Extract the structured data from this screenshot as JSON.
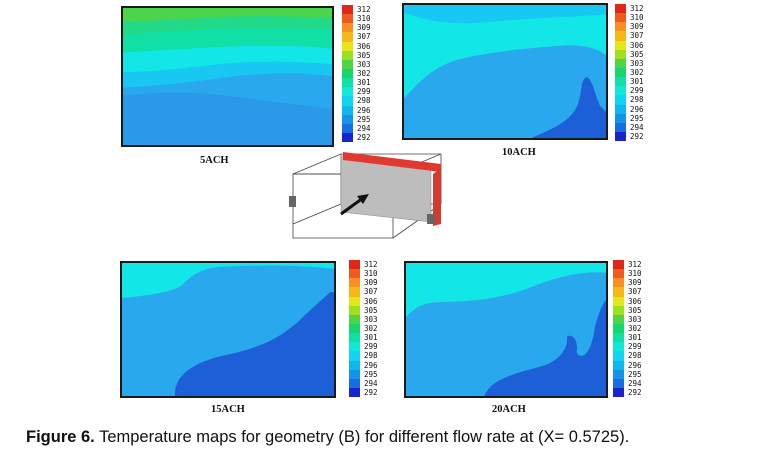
{
  "colors": {
    "scale": [
      "#e0281a",
      "#f05a1e",
      "#f7901f",
      "#f5b818",
      "#e4e61a",
      "#9ce01f",
      "#4ed44a",
      "#18d66f",
      "#10e0a5",
      "#12e8d8",
      "#10d4f0",
      "#10b7ee",
      "#1495e8",
      "#176ee0",
      "#1848d8",
      "#1a24cc"
    ],
    "dark_blue": "#1c5fd6",
    "mid_blue": "#2aa8ee",
    "light_blue": "#19c8f2",
    "cyan": "#12e6e6",
    "green": "#22d98a"
  },
  "colorbar": {
    "ticks": [
      "312",
      "310",
      "309",
      "307",
      "306",
      "305",
      "303",
      "302",
      "301",
      "299",
      "298",
      "296",
      "295",
      "294",
      "292"
    ]
  },
  "panels": [
    {
      "label": "5ACH"
    },
    {
      "label": "10ACH"
    },
    {
      "label": "15ACH"
    },
    {
      "label": "20ACH"
    }
  ],
  "caption": {
    "figure": "Figure 6.",
    "text": "Temperature maps for geometry (B) for different flow rate at (X= 0.5725)."
  }
}
